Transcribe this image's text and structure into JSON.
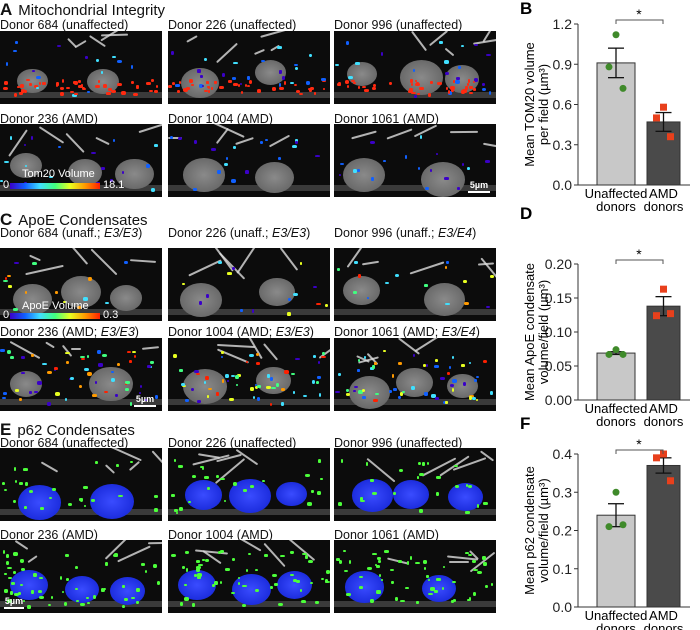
{
  "panels": [
    {
      "letter": "A",
      "title": "Mitochondrial Integrity",
      "style": "tom20",
      "tiles": [
        {
          "prefix": "Donor 684 (unaffected)",
          "genotype": "",
          "suffix": ""
        },
        {
          "prefix": "Donor 226 (unaffected)",
          "genotype": "",
          "suffix": ""
        },
        {
          "prefix": "Donor 996 (unaffected)",
          "genotype": "",
          "suffix": ""
        },
        {
          "prefix": "Donor 236 (AMD)",
          "genotype": "",
          "suffix": ""
        },
        {
          "prefix": "Donor 1004 (AMD)",
          "genotype": "",
          "suffix": ""
        },
        {
          "prefix": "Donor 1061 (AMD)",
          "genotype": "",
          "suffix": ""
        }
      ],
      "colorbar": {
        "label": "Tom20 Volume",
        "min": "0",
        "max": "18.1"
      },
      "scalebar": "5µm"
    },
    {
      "letter": "C",
      "title": "ApoE Condensates",
      "style": "apoe",
      "tiles": [
        {
          "prefix": "Donor 684 (unaff.; ",
          "genotype": "E3/E3",
          "suffix": ")"
        },
        {
          "prefix": "Donor 226 (unaff.; ",
          "genotype": "E3/E3",
          "suffix": ")"
        },
        {
          "prefix": "Donor 996 (unaff.; ",
          "genotype": "E3/E4",
          "suffix": ")"
        },
        {
          "prefix": "Donor 236 (AMD; ",
          "genotype": "E3/E3",
          "suffix": ")"
        },
        {
          "prefix": "Donor 1004 (AMD; ",
          "genotype": "E3/E3",
          "suffix": ")"
        },
        {
          "prefix": "Donor 1061 (AMD; ",
          "genotype": "E3/E4",
          "suffix": ")"
        }
      ],
      "colorbar": {
        "label": "ApoE Volume",
        "min": "0",
        "max": "0.3"
      },
      "scalebar": "5µm"
    },
    {
      "letter": "E",
      "title": "p62 Condensates",
      "style": "p62",
      "tiles": [
        {
          "prefix": "Donor 684 (unaffected)",
          "genotype": "",
          "suffix": ""
        },
        {
          "prefix": "Donor 226 (unaffected)",
          "genotype": "",
          "suffix": ""
        },
        {
          "prefix": "Donor 996 (unaffected)",
          "genotype": "",
          "suffix": ""
        },
        {
          "prefix": "Donor 236 (AMD)",
          "genotype": "",
          "suffix": ""
        },
        {
          "prefix": "Donor 1004 (AMD)",
          "genotype": "",
          "suffix": ""
        },
        {
          "prefix": "Donor 1061 (AMD)",
          "genotype": "",
          "suffix": ""
        }
      ],
      "scalebar": "5µm"
    }
  ],
  "colors": {
    "unaffected_bar": "#c8c8c8",
    "amd_bar": "#4a4a4a",
    "unaffected_points": "#3f8a2a",
    "amd_points": "#e8401c"
  },
  "chart_data": [
    {
      "letter": "B",
      "type": "bar",
      "ylabel": [
        "Mean TOM20 volume",
        "per field (µm³)"
      ],
      "categories": [
        "Unaffected donors",
        "AMD donors"
      ],
      "category_lines": [
        [
          "Unaffected",
          "donors"
        ],
        [
          "AMD",
          "donors"
        ]
      ],
      "values": [
        0.91,
        0.47
      ],
      "sem": [
        0.11,
        0.07
      ],
      "points": [
        [
          1.12,
          0.88,
          0.72
        ],
        [
          0.58,
          0.5,
          0.36
        ]
      ],
      "ylim": [
        0,
        1.2
      ],
      "yticks": [
        "0.0",
        "0.3",
        "0.6",
        "0.9",
        "1.2"
      ],
      "significance": "*"
    },
    {
      "letter": "D",
      "type": "bar",
      "ylabel": [
        "Mean ApoE condensate",
        "volume/field (µm³)"
      ],
      "categories": [
        "Unaffected donors",
        "AMD donors"
      ],
      "category_lines": [
        [
          "Unaffected",
          "donors"
        ],
        [
          "AMD",
          "donors"
        ]
      ],
      "values": [
        0.069,
        0.138
      ],
      "sem": [
        0.002,
        0.014
      ],
      "points": [
        [
          0.074,
          0.067,
          0.067
        ],
        [
          0.163,
          0.124,
          0.127
        ]
      ],
      "ylim": [
        0,
        0.2
      ],
      "yticks": [
        "0.00",
        "0.05",
        "0.10",
        "0.15",
        "0.20"
      ],
      "significance": "*"
    },
    {
      "letter": "F",
      "type": "bar",
      "ylabel": [
        "Mean p62 condensate",
        "volume/field (µm³)"
      ],
      "categories": [
        "Unaffected donors",
        "AMD donors"
      ],
      "category_lines": [
        [
          "Unaffected",
          "donors"
        ],
        [
          "AMD",
          "donors"
        ]
      ],
      "values": [
        0.24,
        0.37
      ],
      "sem": [
        0.03,
        0.02
      ],
      "points": [
        [
          0.3,
          0.21,
          0.215
        ],
        [
          0.4,
          0.39,
          0.33
        ]
      ],
      "ylim": [
        0,
        0.4
      ],
      "yticks": [
        "0.0",
        "0.1",
        "0.2",
        "0.3",
        "0.4"
      ],
      "significance": "*"
    }
  ]
}
